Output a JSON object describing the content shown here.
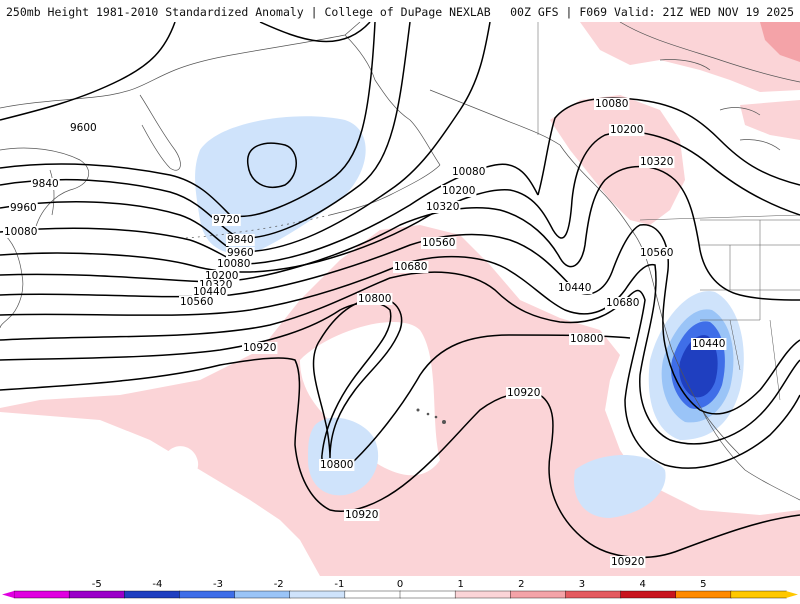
{
  "header": {
    "title_left": "250mb Height 1981-2010 Standardized Anomaly | College of DuPage NEXLAB",
    "title_right": "00Z GFS | F069 Valid: 21Z WED NOV 19 2025"
  },
  "contour_labels": {
    "c9600": "9600",
    "c9720": "9720",
    "c9840a": "9840",
    "c9840b": "9840",
    "c9960a": "9960",
    "c9960b": "9960",
    "c10080a": "10080",
    "c10080b": "10080",
    "c10080c": "10080",
    "c10080d": "10080",
    "c10200a": "10200",
    "c10200b": "10200",
    "c10200c": "10200",
    "c10320a": "10320",
    "c10320b": "10320",
    "c10320c": "10320",
    "c10440a": "10440",
    "c10440b": "10440",
    "c10440c": "10440",
    "c10560a": "10560",
    "c10560b": "10560",
    "c10560c": "10560",
    "c10680a": "10680",
    "c10680b": "10680",
    "c10800a": "10800",
    "c10800b": "10800",
    "c10800c": "10800",
    "c10920a": "10920",
    "c10920b": "10920",
    "c10920c": "10920",
    "c10920d": "10920"
  },
  "colorbar": {
    "ticks": [
      "-5",
      "-4",
      "-3",
      "-2",
      "-1",
      "0",
      "1",
      "2",
      "3",
      "4",
      "5"
    ],
    "colors": [
      "#e000e0",
      "#9a00c8",
      "#1f3fc0",
      "#3f6ee8",
      "#9ac4f7",
      "#cfe3fb",
      "#ffffff",
      "#ffffff",
      "#fbd4d7",
      "#f4a3a8",
      "#e45a5f",
      "#c8141e",
      "#ff8a00",
      "#ffc800"
    ]
  },
  "colors": {
    "neg_light": "#cfe3fb",
    "neg_mid": "#9ac4f7",
    "neg_strong": "#3f6ee8",
    "neg_deep": "#1f3fc0",
    "pos_light": "#fbd4d7",
    "pos_mid": "#f4a3a8",
    "coast": "#555555",
    "contour": "#000000"
  }
}
